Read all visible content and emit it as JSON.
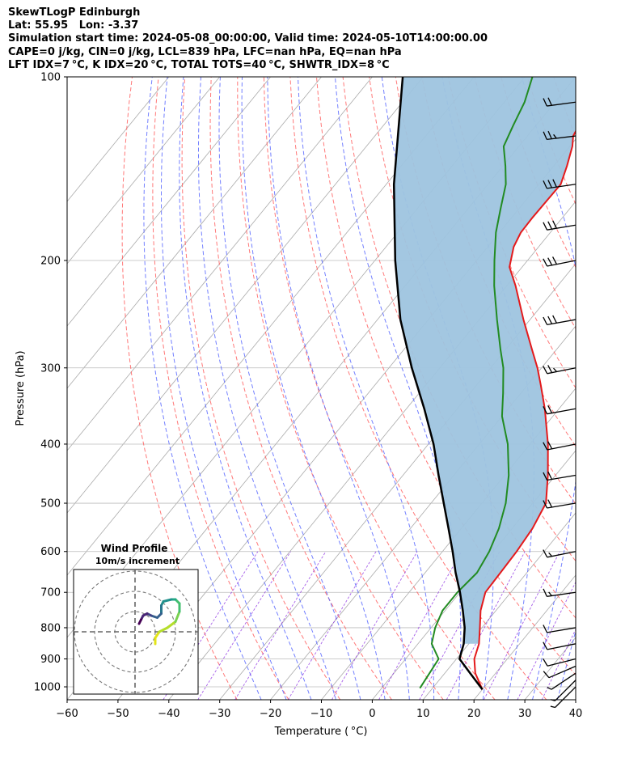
{
  "header": {
    "lines": [
      "SkewTLogP Edinburgh",
      "Lat: 55.95   Lon: -3.37",
      "Simulation start time: 2024-05-08_00:00:00, Valid time: 2024-05-10T14:00:00.00",
      "CAPE=0 j/kg, CIN=0 j/kg, LCL=839 hPa, LFC=nan hPa, EQ=nan hPa",
      "LFT IDX=7 °C, K IDX=20 °C, TOTAL TOTS=40 °C, SHWTR_IDX=8 °C"
    ]
  },
  "chart_data": {
    "type": "line",
    "xlabel": "Temperature ( °C)",
    "ylabel": "Pressure (hPa)",
    "x_ticks": [
      -60,
      -50,
      -40,
      -30,
      -20,
      -10,
      0,
      10,
      20,
      30,
      40
    ],
    "y_ticks": [
      100,
      200,
      300,
      400,
      500,
      600,
      700,
      800,
      900,
      1000
    ],
    "xlim": [
      -60,
      40
    ],
    "ylim": [
      1050,
      100
    ],
    "y_scale": "log",
    "skew": "45deg",
    "colors": {
      "temperature": "#e41a1c",
      "dewpoint": "#228b22",
      "parcel": "#000000",
      "cape_fill": "#9ec4df",
      "dry_adiabat": "#ff6060",
      "moist_adiabat": "#5060ff",
      "mixing_ratio": "#8a2be2",
      "isotherm": "#aaaaaa",
      "grid": "#bbbbbb"
    },
    "series": [
      {
        "key": "temperature",
        "profile": [
          [
            1010,
            20.0
          ],
          [
            950,
            16.0
          ],
          [
            900,
            13.5
          ],
          [
            850,
            12.0
          ],
          [
            800,
            9.6
          ],
          [
            750,
            7.0
          ],
          [
            700,
            5.0
          ],
          [
            650,
            4.8
          ],
          [
            600,
            4.6
          ],
          [
            550,
            4.0
          ],
          [
            500,
            2.6
          ],
          [
            450,
            -1.5
          ],
          [
            400,
            -6.5
          ],
          [
            350,
            -12.8
          ],
          [
            320,
            -17.4
          ],
          [
            300,
            -20.8
          ],
          [
            280,
            -24.8
          ],
          [
            250,
            -31.3
          ],
          [
            220,
            -38.3
          ],
          [
            205,
            -42.5
          ],
          [
            190,
            -44.9
          ],
          [
            180,
            -45.8
          ],
          [
            170,
            -45.9
          ],
          [
            160,
            -45.8
          ],
          [
            150,
            -45.7
          ],
          [
            140,
            -47.4
          ],
          [
            130,
            -49.5
          ],
          [
            125,
            -51.0
          ],
          [
            120,
            -51.6
          ],
          [
            110,
            -53.3
          ],
          [
            100,
            -55.2
          ]
        ]
      },
      {
        "key": "dewpoint",
        "profile": [
          [
            1005,
            7.5
          ],
          [
            950,
            7.0
          ],
          [
            900,
            6.5
          ],
          [
            850,
            2.7
          ],
          [
            800,
            0.8
          ],
          [
            750,
            -0.5
          ],
          [
            700,
            -0.5
          ],
          [
            650,
            0.2
          ],
          [
            600,
            -0.8
          ],
          [
            550,
            -2.6
          ],
          [
            500,
            -5.3
          ],
          [
            450,
            -9.2
          ],
          [
            400,
            -14.4
          ],
          [
            360,
            -20.0
          ],
          [
            330,
            -23.5
          ],
          [
            300,
            -27.5
          ],
          [
            280,
            -31.0
          ],
          [
            250,
            -36.5
          ],
          [
            220,
            -42.5
          ],
          [
            200,
            -46.5
          ],
          [
            180,
            -50.7
          ],
          [
            165,
            -53.5
          ],
          [
            150,
            -56.5
          ],
          [
            140,
            -59.5
          ],
          [
            130,
            -63.0
          ],
          [
            120,
            -64.5
          ],
          [
            110,
            -66.0
          ],
          [
            100,
            -68.5
          ]
        ]
      },
      {
        "key": "parcel",
        "profile": [
          [
            1010,
            20.0
          ],
          [
            950,
            15.0
          ],
          [
            900,
            10.6
          ],
          [
            850,
            9.0
          ],
          [
            800,
            6.6
          ],
          [
            750,
            3.5
          ],
          [
            700,
            0.0
          ],
          [
            650,
            -4.0
          ],
          [
            600,
            -8.0
          ],
          [
            550,
            -12.5
          ],
          [
            500,
            -17.5
          ],
          [
            450,
            -23.0
          ],
          [
            400,
            -29.0
          ],
          [
            350,
            -36.5
          ],
          [
            300,
            -45.5
          ],
          [
            250,
            -55.5
          ],
          [
            200,
            -66.0
          ],
          [
            150,
            -78.5
          ],
          [
            100,
            -94.0
          ]
        ]
      }
    ],
    "hodograph": {
      "title": "Wind Profile",
      "subtitle": "10m/s increment",
      "rings_ms": [
        10,
        20,
        30
      ],
      "points_ms": [
        [
          10,
          -6
        ],
        [
          10,
          -3
        ],
        [
          12,
          0
        ],
        [
          16,
          2
        ],
        [
          20,
          5
        ],
        [
          22,
          10
        ],
        [
          22,
          14
        ],
        [
          20,
          16
        ],
        [
          18,
          16
        ],
        [
          14,
          15
        ],
        [
          13,
          13
        ],
        [
          13,
          9
        ],
        [
          11,
          7
        ],
        [
          8,
          8
        ],
        [
          6,
          9
        ],
        [
          4,
          8
        ],
        [
          3,
          6
        ],
        [
          2,
          4
        ]
      ]
    },
    "wind_barbs": [
      {
        "p": 1000,
        "u": 5,
        "v": 5
      },
      {
        "p": 975,
        "u": 5,
        "v": 5
      },
      {
        "p": 950,
        "u": 6,
        "v": 4
      },
      {
        "p": 925,
        "u": 7,
        "v": 3
      },
      {
        "p": 900,
        "u": 8,
        "v": 2
      },
      {
        "p": 850,
        "u": 10,
        "v": 2
      },
      {
        "p": 800,
        "u": 12,
        "v": 2
      },
      {
        "p": 700,
        "u": 14,
        "v": 2
      },
      {
        "p": 600,
        "u": 15,
        "v": 3
      },
      {
        "p": 500,
        "u": 18,
        "v": 3
      },
      {
        "p": 450,
        "u": 18,
        "v": 3
      },
      {
        "p": 400,
        "u": 20,
        "v": 4
      },
      {
        "p": 350,
        "u": 22,
        "v": 4
      },
      {
        "p": 300,
        "u": 25,
        "v": 5
      },
      {
        "p": 250,
        "u": 28,
        "v": 5
      },
      {
        "p": 200,
        "u": 30,
        "v": 6
      },
      {
        "p": 175,
        "u": 30,
        "v": 5
      },
      {
        "p": 150,
        "u": 28,
        "v": 4
      },
      {
        "p": 125,
        "u": 25,
        "v": 3
      },
      {
        "p": 110,
        "u": 22,
        "v": 3
      }
    ]
  }
}
